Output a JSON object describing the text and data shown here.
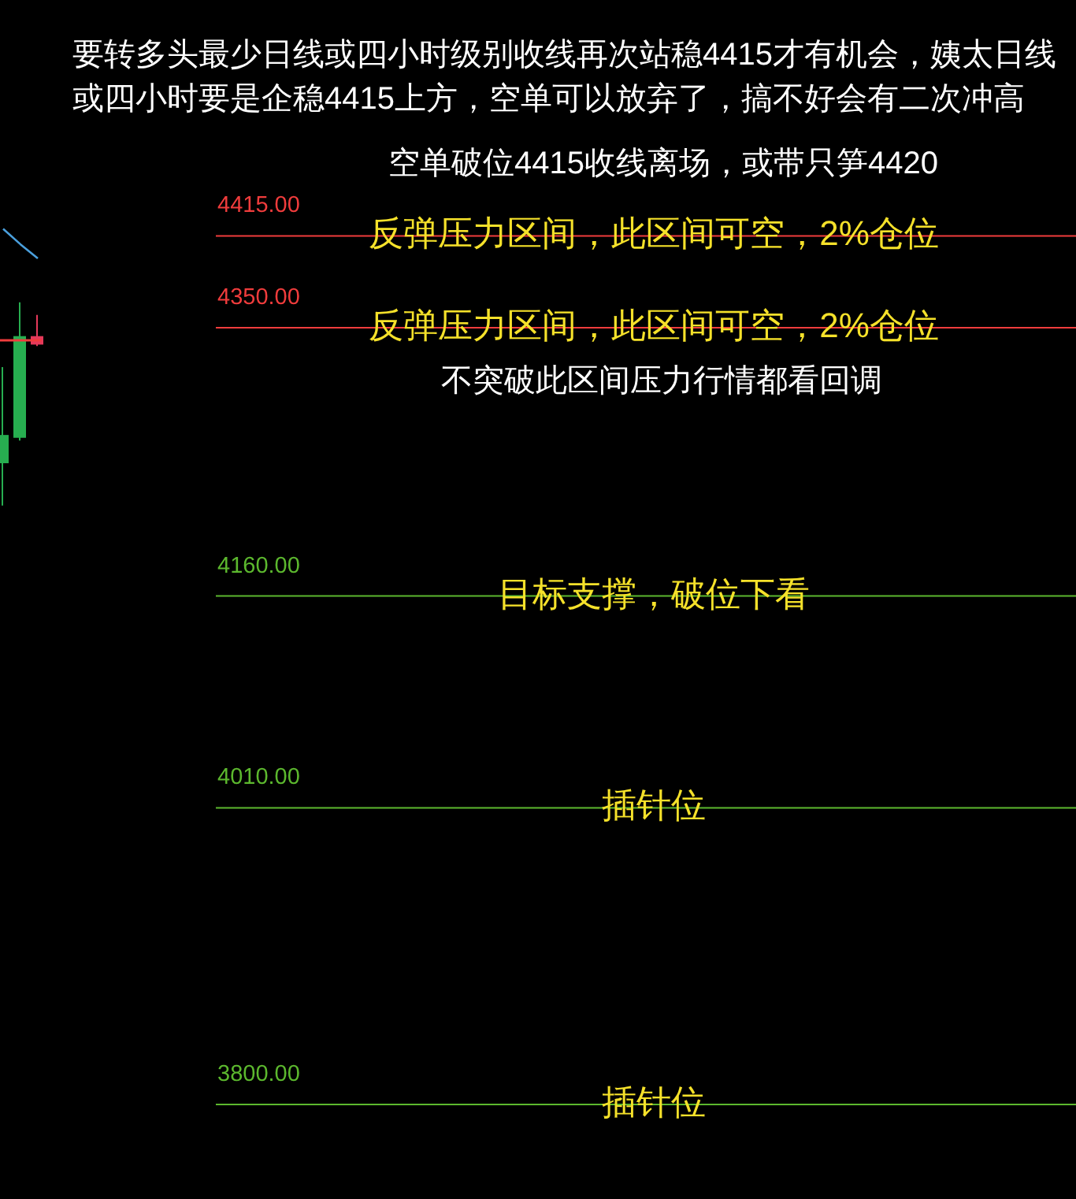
{
  "chart_data": {
    "type": "candlestick",
    "title": "要转多头最少日线或四小时级别收线再次站稳4415才有机会，姨太日线或四小时要是企稳4415上方，空单可以放弃了，搞不好会有二次冲高",
    "categories": [
      null,
      null,
      null
    ],
    "ohlc": [
      [
        4254,
        4322,
        4224,
        4274
      ],
      [
        4272,
        4368,
        4270,
        4344
      ],
      [
        4344,
        4359,
        4337,
        4338
      ]
    ],
    "colors": [
      "#27ae50",
      "#27ae50",
      "#e5395a"
    ],
    "series": [
      {
        "type": "line",
        "color": "#4a9fdc",
        "values": [
          4420,
          4409,
          4399
        ]
      }
    ],
    "ylim": [
      3733,
      4582
    ],
    "tick_labels": false,
    "ref_lines": [
      {
        "axis": "y",
        "value": 4415,
        "label": "4415.00",
        "color": "#f03c3c"
      },
      {
        "axis": "y",
        "value": 4350,
        "label": "4350.00",
        "color": "#f03c3c"
      },
      {
        "axis": "y",
        "value": 4341,
        "color": "#f03c3c"
      },
      {
        "axis": "y",
        "value": 4160,
        "label": "4160.00",
        "color": "#5cb82e"
      },
      {
        "axis": "y",
        "value": 4010,
        "label": "4010.00",
        "color": "#5cb82e"
      },
      {
        "axis": "y",
        "value": 3800,
        "label": "3800.00",
        "color": "#5cb82e"
      }
    ],
    "annotations": [
      "空单破位4415收线离场，或带只笋4420",
      {
        "text": "反弹压力区间，此区间可空，2%仓位",
        "y": 4415
      },
      {
        "text": "反弹压力区间，此区间可空，2%仓位",
        "y": 4350
      },
      "不突破此区间压力行情都看回调",
      {
        "text": "目标支撑，破位下看",
        "y": 4160
      },
      {
        "text": "插针位",
        "y": 4010
      },
      {
        "text": "插针位",
        "y": 3800
      }
    ]
  }
}
